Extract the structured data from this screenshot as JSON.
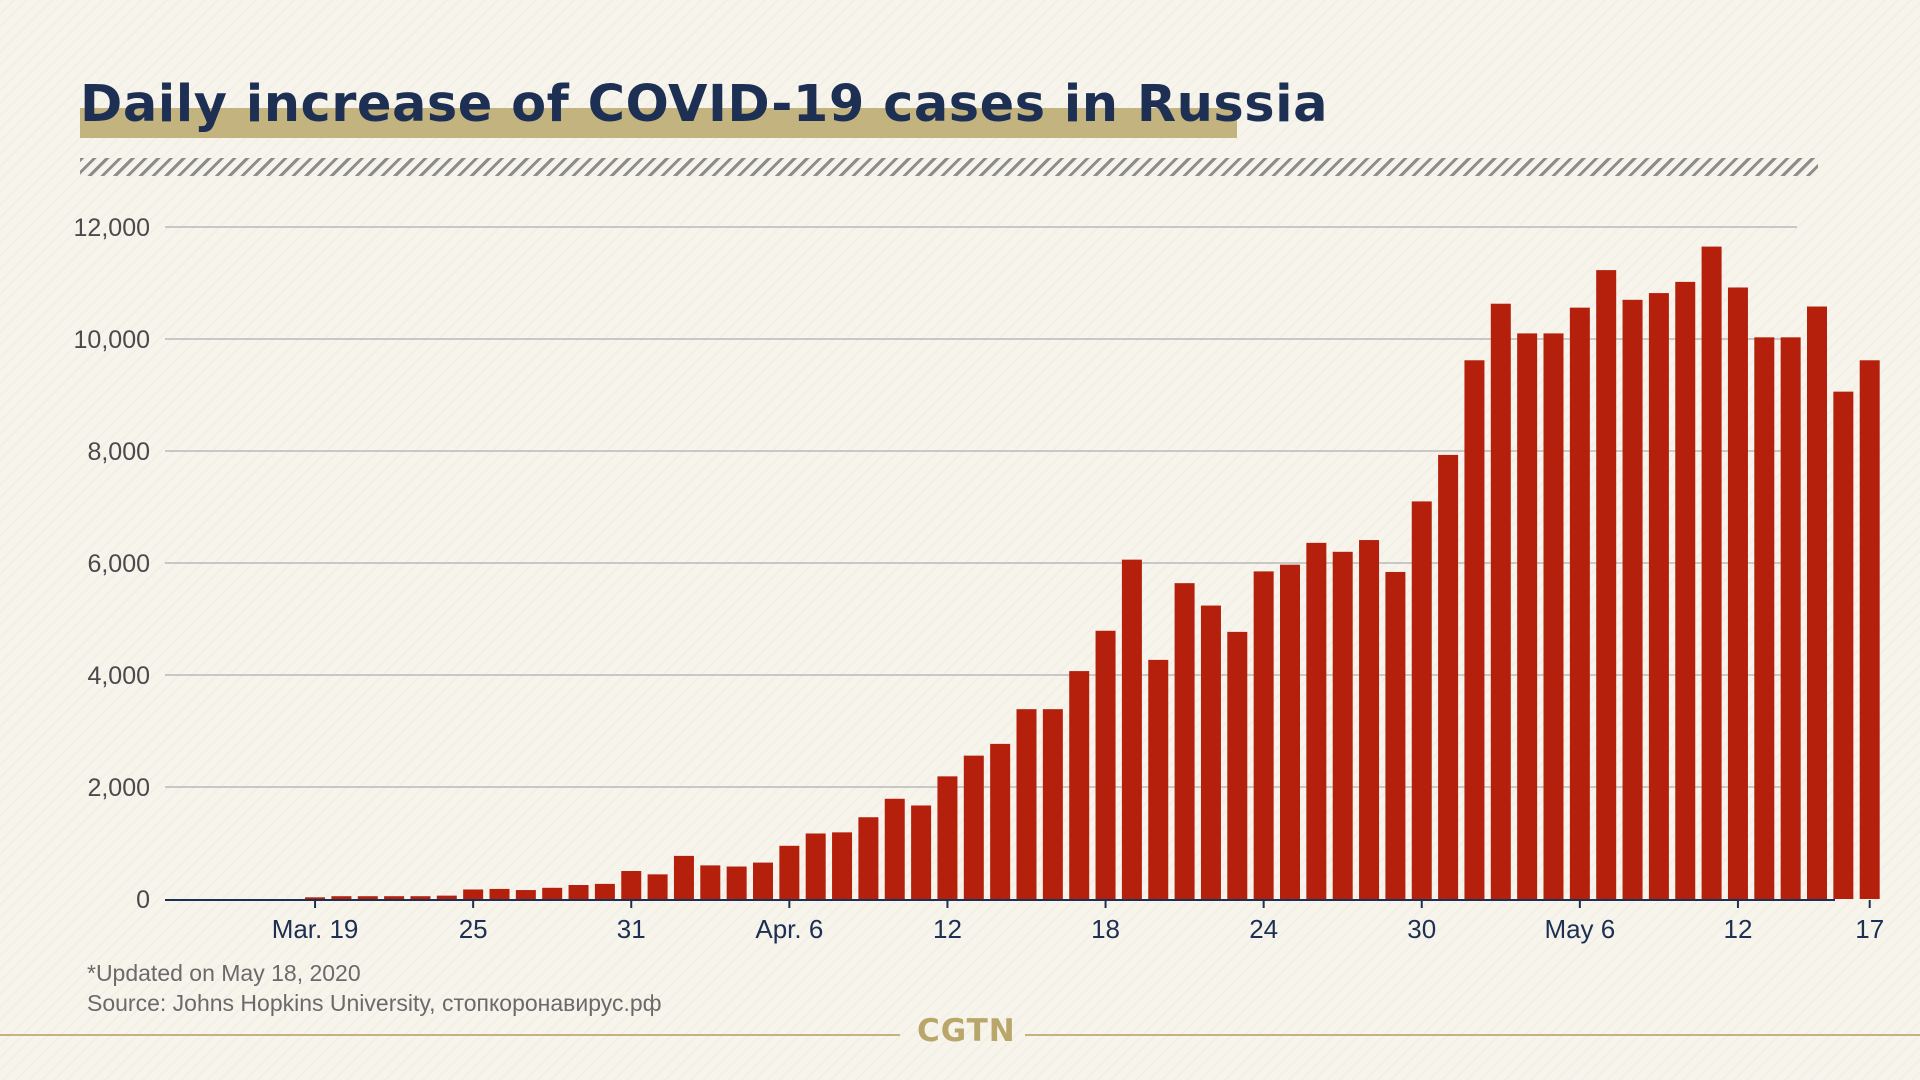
{
  "title": "Daily increase of COVID-19 cases in Russia",
  "note": "*Updated on May 18, 2020",
  "source": "Source: Johns Hopkins University, стопкоронавирус.рф",
  "logo": "CGTN",
  "colors": {
    "bar": "#b5200d",
    "title": "#1d2f52",
    "accent": "#c3b37f",
    "background": "#f7f4ec"
  },
  "chart_data": {
    "type": "bar",
    "title": "Daily increase of COVID-19 cases in Russia",
    "xlabel": "",
    "ylabel": "",
    "ylim": [
      0,
      12000
    ],
    "yticks": [
      0,
      2000,
      4000,
      6000,
      8000,
      10000,
      12000
    ],
    "ytick_labels": [
      "0",
      "2,000",
      "4,000",
      "6,000",
      "8,000",
      "10,000",
      "12,000"
    ],
    "xtick_labels": [
      {
        "label": "Mar. 19",
        "index": 3
      },
      {
        "label": "25",
        "index": 9
      },
      {
        "label": "31",
        "index": 15
      },
      {
        "label": "Apr. 6",
        "index": 21
      },
      {
        "label": "12",
        "index": 27
      },
      {
        "label": "18",
        "index": 33
      },
      {
        "label": "24",
        "index": 39
      },
      {
        "label": "30",
        "index": 45
      },
      {
        "label": "May 6",
        "index": 51
      },
      {
        "label": "12",
        "index": 57
      },
      {
        "label": "17",
        "index": 62
      }
    ],
    "categories": [
      "Mar 16",
      "Mar 17",
      "Mar 18",
      "Mar 19",
      "Mar 20",
      "Mar 21",
      "Mar 22",
      "Mar 23",
      "Mar 24",
      "Mar 25",
      "Mar 26",
      "Mar 27",
      "Mar 28",
      "Mar 29",
      "Mar 30",
      "Mar 31",
      "Apr 1",
      "Apr 2",
      "Apr 3",
      "Apr 4",
      "Apr 5",
      "Apr 6",
      "Apr 7",
      "Apr 8",
      "Apr 9",
      "Apr 10",
      "Apr 11",
      "Apr 12",
      "Apr 13",
      "Apr 14",
      "Apr 15",
      "Apr 16",
      "Apr 17",
      "Apr 18",
      "Apr 19",
      "Apr 20",
      "Apr 21",
      "Apr 22",
      "Apr 23",
      "Apr 24",
      "Apr 25",
      "Apr 26",
      "Apr 27",
      "Apr 28",
      "Apr 29",
      "Apr 30",
      "May 1",
      "May 2",
      "May 3",
      "May 4",
      "May 5",
      "May 6",
      "May 7",
      "May 8",
      "May 9",
      "May 10",
      "May 11",
      "May 12",
      "May 13",
      "May 14",
      "May 15",
      "May 16",
      "May 17"
    ],
    "values": [
      0,
      0,
      0,
      30,
      50,
      50,
      50,
      50,
      60,
      170,
      180,
      160,
      200,
      250,
      270,
      500,
      440,
      770,
      600,
      580,
      650,
      950,
      1170,
      1190,
      1460,
      1790,
      1670,
      2190,
      2560,
      2770,
      3390,
      3390,
      4070,
      4790,
      6060,
      4270,
      5640,
      5240,
      4770,
      5850,
      5970,
      6360,
      6200,
      6410,
      5840,
      7100,
      7930,
      9620,
      10630,
      10100,
      10100,
      10560,
      11230,
      10700,
      10820,
      11020,
      11650,
      10920,
      10030,
      10030,
      10580,
      9060,
      9620
    ]
  }
}
